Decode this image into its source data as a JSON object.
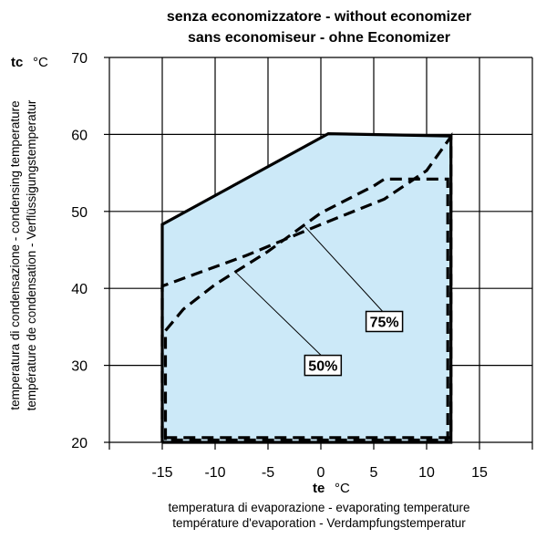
{
  "chart_data": {
    "type": "line",
    "title_lines": [
      "senza economizzatore  -  without economizer",
      "sans economiseur  -  ohne Economizer"
    ],
    "x_axis": {
      "name": "te",
      "unit": "°C",
      "description_lines": [
        "temperatura di evaporazione  -   evaporating temperature",
        "température d'evaporation  -  Verdampfungstemperatur"
      ],
      "range": [
        -20,
        20
      ],
      "ticks": [
        -15,
        -10,
        -5,
        0,
        5,
        10,
        15
      ],
      "tick_labels": [
        "-15",
        "-10",
        "-5",
        "0",
        "5",
        "10",
        "15"
      ]
    },
    "y_axis": {
      "name": "tc",
      "unit": "°C",
      "description_lines": [
        "temperatura di condensazione - condensing temperature",
        "température de condensation - Verflüssigungstemperatur"
      ],
      "range": [
        20,
        70
      ],
      "ticks": [
        20,
        30,
        40,
        50,
        60,
        70
      ],
      "tick_labels": [
        "20",
        "30",
        "40",
        "50",
        "60",
        "70"
      ]
    },
    "grid": true,
    "envelope": {
      "style": "solid-thick",
      "fill": "#cce9f8",
      "points": [
        [
          -15,
          20
        ],
        [
          -15,
          48.3
        ],
        [
          0.7,
          60.1
        ],
        [
          12.3,
          59.8
        ],
        [
          12.3,
          20
        ],
        [
          -15,
          20
        ]
      ]
    },
    "series": [
      {
        "name": "75%",
        "style": "dashed",
        "points": [
          [
            -15,
            20.6
          ],
          [
            -15,
            40.3
          ],
          [
            -7,
            44.3
          ],
          [
            0,
            48.3
          ],
          [
            6,
            51.6
          ],
          [
            10,
            55.3
          ],
          [
            12.3,
            59.7
          ],
          [
            12.3,
            20.6
          ],
          [
            -15,
            20.6
          ]
        ]
      },
      {
        "name": "50%",
        "style": "dashed",
        "points": [
          [
            -14.7,
            20.3
          ],
          [
            -14.7,
            34.5
          ],
          [
            -13,
            37.3
          ],
          [
            -10,
            40.5
          ],
          [
            -5,
            44.8
          ],
          [
            0,
            49.8
          ],
          [
            5,
            53.3
          ],
          [
            6,
            54.2
          ],
          [
            12,
            54.2
          ],
          [
            12,
            20.3
          ],
          [
            -14.7,
            20.3
          ]
        ]
      }
    ],
    "annotations": [
      {
        "text": "75%",
        "at": [
          6,
          35.7
        ],
        "points_to": [
          -1.5,
          48
        ]
      },
      {
        "text": "50%",
        "at": [
          0.2,
          30
        ],
        "points_to": [
          -8,
          42
        ]
      }
    ]
  }
}
